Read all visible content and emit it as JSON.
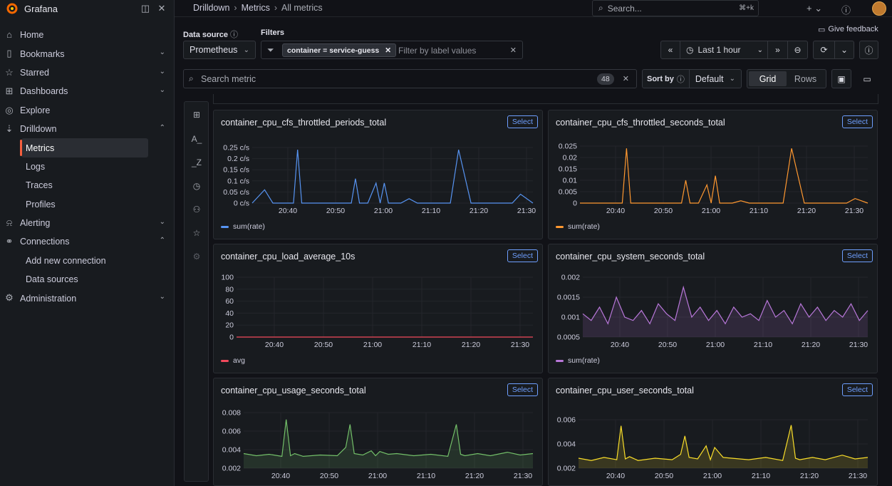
{
  "app": {
    "name": "Grafana"
  },
  "nav": [
    {
      "label": "Home",
      "icon": "home-icon",
      "chev": ""
    },
    {
      "label": "Bookmarks",
      "icon": "bookmark-icon",
      "chev": "⌄"
    },
    {
      "label": "Starred",
      "icon": "star-icon",
      "chev": "⌄"
    },
    {
      "label": "Dashboards",
      "icon": "dashboards-icon",
      "chev": "⌄"
    },
    {
      "label": "Explore",
      "icon": "compass-icon",
      "chev": ""
    },
    {
      "label": "Drilldown",
      "icon": "drilldown-icon",
      "chev": "⌃"
    },
    {
      "label": "Metrics",
      "sub": true,
      "active": true
    },
    {
      "label": "Logs",
      "sub": true
    },
    {
      "label": "Traces",
      "sub": true
    },
    {
      "label": "Profiles",
      "sub": true
    },
    {
      "label": "Alerting",
      "icon": "bell-icon",
      "chev": "⌄"
    },
    {
      "label": "Connections",
      "icon": "connections-icon",
      "chev": "⌃"
    },
    {
      "label": "Add new connection",
      "sub": true
    },
    {
      "label": "Data sources",
      "sub": true
    },
    {
      "label": "Administration",
      "icon": "gear-icon",
      "chev": "⌄"
    }
  ],
  "breadcrumb": [
    "Drilldown",
    "Metrics",
    "All metrics"
  ],
  "search": {
    "placeholder": "Search...",
    "shortcut": "⌘+k"
  },
  "toolbar": {
    "give_feedback": "Give feedback",
    "datasource_label": "Data source",
    "datasource_value": "Prometheus",
    "filters_label": "Filters",
    "filter_chip": "container = service-guess",
    "filter_placeholder": "Filter by label values",
    "time_range": "Last 1 hour",
    "search_metric_placeholder": "Search metric",
    "metric_count": "48",
    "sort_label": "Sort by",
    "sort_value": "Default",
    "view_grid": "Grid",
    "view_rows": "Rows"
  },
  "select_label": "Select",
  "chart_data": [
    {
      "type": "line",
      "title": "container_cpu_cfs_throttled_periods_total",
      "color": "#5794f2",
      "legend": "sum(rate)",
      "x_ticks": [
        "20:40",
        "20:50",
        "21:00",
        "21:10",
        "21:20",
        "21:30"
      ],
      "y_ticks": [
        "0 c/s",
        "0.05 c/s",
        "0.1 c/s",
        "0.15 c/s",
        "0.2 c/s",
        "0.25 c/s"
      ],
      "ylim": [
        0,
        0.25
      ],
      "x": [
        0,
        3,
        5,
        8,
        10,
        11,
        12,
        14,
        18,
        21,
        24,
        25,
        26,
        28,
        30,
        31,
        32,
        33,
        34,
        35,
        36,
        38,
        40,
        42,
        44,
        48,
        50,
        53,
        55,
        57,
        60,
        63,
        65,
        68
      ],
      "values": [
        0,
        0.06,
        0,
        0,
        0,
        0.24,
        0,
        0,
        0,
        0,
        0,
        0.11,
        0,
        0,
        0.09,
        0,
        0.09,
        0,
        0,
        0,
        0,
        0.02,
        0,
        0,
        0,
        0,
        0.24,
        0,
        0,
        0,
        0,
        0,
        0.04,
        0
      ]
    },
    {
      "type": "line",
      "title": "container_cpu_cfs_throttled_seconds_total",
      "color": "#ff9830",
      "legend": "sum(rate)",
      "x_ticks": [
        "20:40",
        "20:50",
        "21:00",
        "21:10",
        "21:20",
        "21:30"
      ],
      "y_ticks": [
        "0",
        "0.005",
        "0.01",
        "0.015",
        "0.02",
        "0.025"
      ],
      "ylim": [
        0,
        0.025
      ],
      "x": [
        0,
        3,
        5,
        8,
        10,
        11,
        12,
        14,
        18,
        21,
        24,
        25,
        26,
        28,
        30,
        31,
        32,
        33,
        34,
        35,
        36,
        38,
        40,
        42,
        44,
        48,
        50,
        53,
        55,
        57,
        60,
        63,
        65,
        68
      ],
      "values": [
        0,
        0,
        0,
        0,
        0,
        0.024,
        0,
        0,
        0,
        0,
        0,
        0.01,
        0,
        0,
        0.008,
        0,
        0.012,
        0,
        0,
        0,
        0,
        0.001,
        0,
        0,
        0,
        0,
        0.024,
        0,
        0,
        0,
        0,
        0,
        0.002,
        0
      ]
    },
    {
      "type": "line",
      "title": "container_cpu_load_average_10s",
      "color": "#f2495c",
      "legend": "avg",
      "x_ticks": [
        "20:40",
        "20:50",
        "21:00",
        "21:10",
        "21:20",
        "21:30"
      ],
      "y_ticks": [
        "0",
        "20",
        "40",
        "60",
        "80",
        "100"
      ],
      "ylim": [
        0,
        100
      ],
      "x": [
        0,
        68
      ],
      "values": [
        0,
        0
      ]
    },
    {
      "type": "area",
      "title": "container_cpu_system_seconds_total",
      "color": "#b877d9",
      "legend": "sum(rate)",
      "x_ticks": [
        "20:40",
        "20:50",
        "21:00",
        "21:10",
        "21:20",
        "21:30"
      ],
      "y_ticks": [
        "0.0005",
        "0.001",
        "0.0015",
        "0.002"
      ],
      "ylim": [
        0.0002,
        0.002
      ],
      "x": [
        0,
        2,
        4,
        6,
        8,
        10,
        12,
        14,
        16,
        18,
        20,
        22,
        24,
        26,
        28,
        30,
        32,
        34,
        36,
        38,
        40,
        42,
        44,
        46,
        48,
        50,
        52,
        54,
        56,
        58,
        60,
        62,
        64,
        66,
        68
      ],
      "values": [
        0.0009,
        0.0007,
        0.0011,
        0.0006,
        0.0014,
        0.0008,
        0.0007,
        0.001,
        0.0006,
        0.0012,
        0.0009,
        0.0007,
        0.0017,
        0.0008,
        0.0011,
        0.0007,
        0.001,
        0.0006,
        0.0011,
        0.0008,
        0.0009,
        0.0007,
        0.0013,
        0.0008,
        0.001,
        0.0006,
        0.0012,
        0.0008,
        0.0011,
        0.0007,
        0.001,
        0.0008,
        0.0012,
        0.0007,
        0.001
      ]
    },
    {
      "type": "area",
      "title": "container_cpu_usage_seconds_total",
      "color": "#73bf69",
      "legend": "",
      "x_ticks": [
        "20:40",
        "20:50",
        "21:00",
        "21:10",
        "21:20",
        "21:30"
      ],
      "y_ticks": [
        "0.002",
        "0.004",
        "0.006",
        "0.008"
      ],
      "ylim": [
        0.0015,
        0.0095
      ],
      "x": [
        0,
        3,
        6,
        9,
        10,
        11,
        12,
        14,
        18,
        22,
        24,
        25,
        26,
        28,
        30,
        31,
        32,
        34,
        36,
        40,
        44,
        48,
        50,
        51,
        52,
        55,
        58,
        62,
        65,
        68
      ],
      "values": [
        0.0036,
        0.0033,
        0.0035,
        0.0032,
        0.0085,
        0.0033,
        0.0036,
        0.0032,
        0.0034,
        0.0033,
        0.0045,
        0.0078,
        0.0036,
        0.0034,
        0.004,
        0.0033,
        0.0039,
        0.0035,
        0.0036,
        0.0033,
        0.0035,
        0.0032,
        0.0078,
        0.0035,
        0.0033,
        0.0036,
        0.0033,
        0.0038,
        0.0034,
        0.0036
      ]
    },
    {
      "type": "area",
      "title": "container_cpu_user_seconds_total",
      "color": "#fade2a",
      "legend": "",
      "x_ticks": [
        "20:40",
        "20:50",
        "21:00",
        "21:10",
        "21:20",
        "21:30"
      ],
      "y_ticks": [
        "0.002",
        "0.004",
        "0.006"
      ],
      "ylim": [
        0.0012,
        0.0075
      ],
      "x": [
        0,
        3,
        6,
        9,
        10,
        11,
        12,
        14,
        18,
        22,
        24,
        25,
        26,
        28,
        30,
        31,
        32,
        34,
        36,
        40,
        44,
        48,
        50,
        51,
        52,
        55,
        58,
        62,
        65,
        68
      ],
      "values": [
        0.0025,
        0.0022,
        0.0026,
        0.0023,
        0.0067,
        0.0024,
        0.0027,
        0.0022,
        0.0025,
        0.0023,
        0.003,
        0.0054,
        0.0026,
        0.0024,
        0.0041,
        0.0023,
        0.0039,
        0.0026,
        0.0025,
        0.0023,
        0.0026,
        0.0022,
        0.0068,
        0.0025,
        0.0023,
        0.0026,
        0.0023,
        0.0029,
        0.0024,
        0.0026
      ]
    }
  ]
}
